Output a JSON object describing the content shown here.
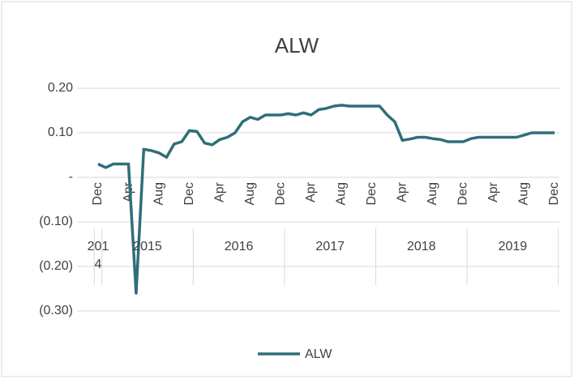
{
  "chart_data": {
    "type": "line",
    "title": "ALW",
    "categories": [
      "Dec",
      null,
      null,
      null,
      "Apr",
      null,
      null,
      null,
      "Aug",
      null,
      null,
      null,
      "Dec",
      null,
      null,
      null,
      "Apr",
      null,
      null,
      null,
      "Aug",
      null,
      null,
      null,
      "Dec",
      null,
      null,
      null,
      "Apr",
      null,
      null,
      null,
      "Aug",
      null,
      null,
      null,
      "Dec",
      null,
      null,
      null,
      "Apr",
      null,
      null,
      null,
      "Aug",
      null,
      null,
      null,
      "Dec",
      null,
      null,
      null,
      "Apr",
      null,
      null,
      null,
      "Aug",
      null,
      null,
      null,
      "Dec"
    ],
    "year_labels": [
      "2014",
      "2015",
      "2016",
      "2017",
      "2018",
      "2019"
    ],
    "series": [
      {
        "name": "ALW",
        "color": "#2f6e7a",
        "values": [
          0.03,
          0.022,
          0.03,
          0.03,
          0.03,
          -0.26,
          0.063,
          0.06,
          0.055,
          0.045,
          0.075,
          0.08,
          0.105,
          0.103,
          0.077,
          0.073,
          0.085,
          0.09,
          0.1,
          0.125,
          0.135,
          0.13,
          0.14,
          0.14,
          0.14,
          0.143,
          0.14,
          0.145,
          0.14,
          0.152,
          0.155,
          0.16,
          0.162,
          0.16,
          0.16,
          0.16,
          0.16,
          0.16,
          0.14,
          0.125,
          0.083,
          0.086,
          0.09,
          0.09,
          0.087,
          0.085,
          0.08,
          0.08,
          0.08,
          0.087,
          0.09,
          0.09,
          0.09,
          0.09,
          0.09,
          0.09,
          0.095,
          0.1,
          0.1,
          0.1,
          0.1
        ]
      }
    ],
    "ylim": [
      -0.3,
      0.2
    ],
    "yticks": [
      {
        "value": 0.2,
        "label": "0.20"
      },
      {
        "value": 0.1,
        "label": "0.10"
      },
      {
        "value": 0,
        "label": "-"
      },
      {
        "value": -0.1,
        "label": "(0.10)"
      },
      {
        "value": -0.2,
        "label": "(0.20)"
      },
      {
        "value": -0.3,
        "label": "(0.30)"
      }
    ],
    "grid": true,
    "legend": "bottom"
  }
}
